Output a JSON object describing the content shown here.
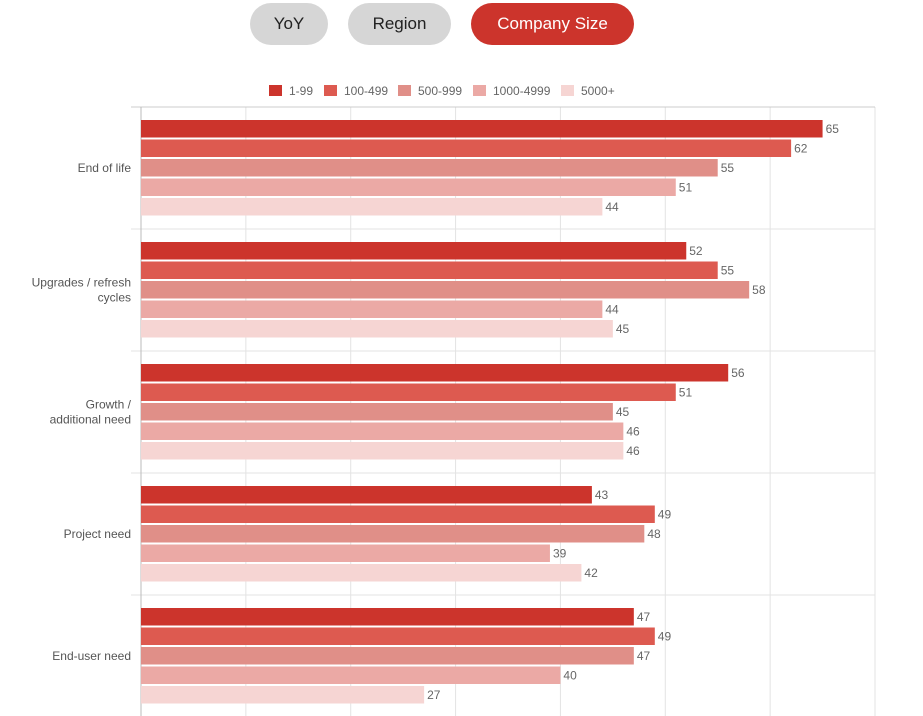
{
  "tabs": [
    {
      "label": "YoY",
      "active": false
    },
    {
      "label": "Region",
      "active": false
    },
    {
      "label": "Company Size",
      "active": true
    }
  ],
  "chart_data": {
    "type": "bar",
    "orientation": "horizontal",
    "categories": [
      [
        "End of life"
      ],
      [
        "Upgrades / refresh",
        "cycles"
      ],
      [
        "Growth /",
        "additional need"
      ],
      [
        "Project need"
      ],
      [
        "End-user need"
      ]
    ],
    "series": [
      {
        "name": "1-99",
        "color": "#cc342c",
        "values": [
          65,
          52,
          56,
          43,
          47
        ]
      },
      {
        "name": "100-499",
        "color": "#dd5a50",
        "values": [
          62,
          55,
          51,
          49,
          49
        ]
      },
      {
        "name": "500-999",
        "color": "#e08f88",
        "values": [
          55,
          58,
          45,
          48,
          47
        ]
      },
      {
        "name": "1000-4999",
        "color": "#eba9a5",
        "values": [
          51,
          44,
          46,
          39,
          40
        ]
      },
      {
        "name": "5000+",
        "color": "#f6d5d3",
        "values": [
          44,
          45,
          46,
          42,
          27
        ]
      }
    ],
    "xlim": [
      0,
      70
    ],
    "grid": true,
    "legend": "top-center",
    "title": "",
    "xlabel": "",
    "ylabel": ""
  }
}
